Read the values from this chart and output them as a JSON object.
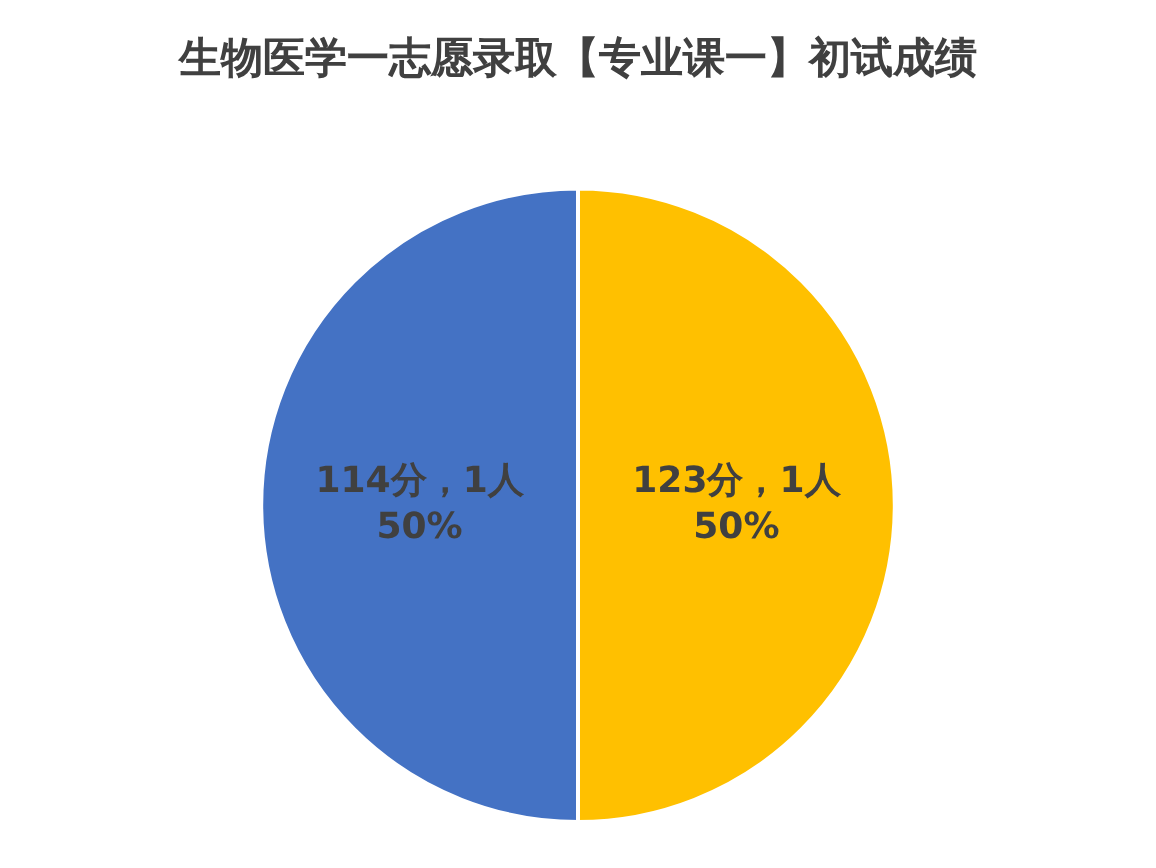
{
  "chart_data": {
    "type": "pie",
    "title": "生物医学一志愿录取【专业课一】初试成绩",
    "categories": [
      "123分，1人",
      "114分，1人"
    ],
    "values": [
      50,
      50
    ],
    "colors": [
      "#ffc000",
      "#4472c4"
    ],
    "value_labels": [
      "50%",
      "50%"
    ],
    "legend": false
  }
}
